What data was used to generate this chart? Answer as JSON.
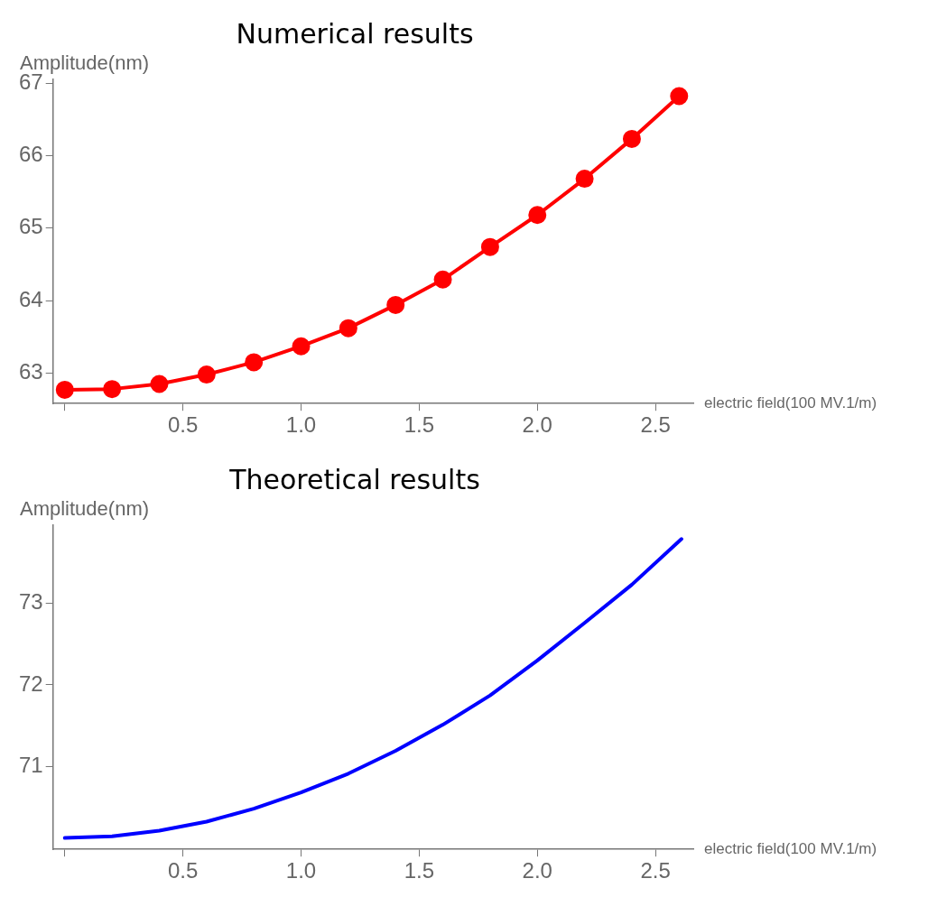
{
  "chart_data": [
    {
      "type": "line",
      "title": "Numerical results",
      "xlabel": "electric field(100 MV.1/m)",
      "ylabel": "Amplitude(nm)",
      "marker": "circle",
      "x": [
        0,
        0.2,
        0.4,
        0.6,
        0.8,
        1.0,
        1.2,
        1.4,
        1.6,
        1.8,
        2.0,
        2.2,
        2.4,
        2.6
      ],
      "series": [
        {
          "color": "#ff0000",
          "values": [
            62.77,
            62.78,
            62.85,
            62.98,
            63.15,
            63.37,
            63.62,
            63.94,
            64.29,
            64.74,
            65.18,
            65.68,
            66.23,
            66.82
          ]
        }
      ],
      "xlim": [
        -0.05,
        2.66
      ],
      "ylim": [
        62.58,
        67.05
      ],
      "xticks": [
        {
          "value": 0,
          "label": null
        },
        0.5,
        {
          "value": 1,
          "label": "1.0"
        },
        1.5,
        {
          "value": 2,
          "label": "2.0"
        },
        2.5
      ],
      "yticks": [
        63,
        64,
        65,
        66,
        67
      ]
    },
    {
      "type": "line",
      "title": "Theoretical results",
      "xlabel": "electric field(100 MV.1/m)",
      "ylabel": "Amplitude(nm)",
      "marker": "none",
      "x": [
        0,
        0.2,
        0.4,
        0.6,
        0.8,
        1.0,
        1.2,
        1.4,
        1.6,
        1.8,
        2.0,
        2.2,
        2.4,
        2.61
      ],
      "series": [
        {
          "color": "#0000ff",
          "values": [
            70.12,
            70.14,
            70.21,
            70.32,
            70.48,
            70.68,
            70.91,
            71.19,
            71.51,
            71.87,
            72.3,
            72.76,
            73.23,
            73.79
          ]
        }
      ],
      "xlim": [
        -0.05,
        2.66
      ],
      "ylim": [
        69.98,
        73.96
      ],
      "xticks": [
        {
          "value": 0,
          "label": null
        },
        0.5,
        {
          "value": 1,
          "label": "1.0"
        },
        1.5,
        {
          "value": 2,
          "label": "2.0"
        },
        2.5
      ],
      "yticks": [
        71,
        72,
        73
      ]
    }
  ]
}
